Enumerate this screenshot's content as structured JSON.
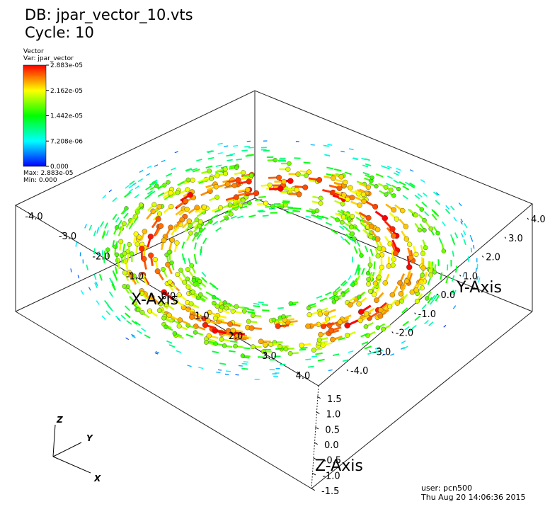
{
  "header": {
    "db": "DB: jpar_vector_10.vts",
    "cycle": "Cycle: 10"
  },
  "legend": {
    "title": "Vector",
    "var": "Var: jpar_vector",
    "ticks": [
      "2.883e-05",
      "2.162e-05",
      "1.442e-05",
      "7.208e-06",
      "0.000"
    ],
    "max": "Max:  2.883e-05",
    "min": "Min:  0.000"
  },
  "axes": {
    "x": {
      "label": "X-Axis",
      "ticks": [
        "-4.0",
        "-3.0",
        "-2.0",
        "-1.0",
        "0.0",
        "1.0",
        "2.0",
        "3.0",
        "4.0"
      ]
    },
    "y": {
      "label": "Y-Axis",
      "ticks": [
        "-4.0",
        "-3.0",
        "-2.0",
        "-1.0",
        "0.0",
        "1.0",
        "2.0",
        "3.0",
        "4.0"
      ]
    },
    "z": {
      "label": "Z-Axis",
      "ticks": [
        "1.5",
        "1.0",
        "0.5",
        "0.0",
        "-0.5",
        "-1.0",
        "-1.5"
      ]
    }
  },
  "triad": {
    "x": "X",
    "y": "Y",
    "z": "Z"
  },
  "footer": {
    "user": "user: pcn500",
    "date": "Thu Aug 20 14:06:36 2015"
  }
}
